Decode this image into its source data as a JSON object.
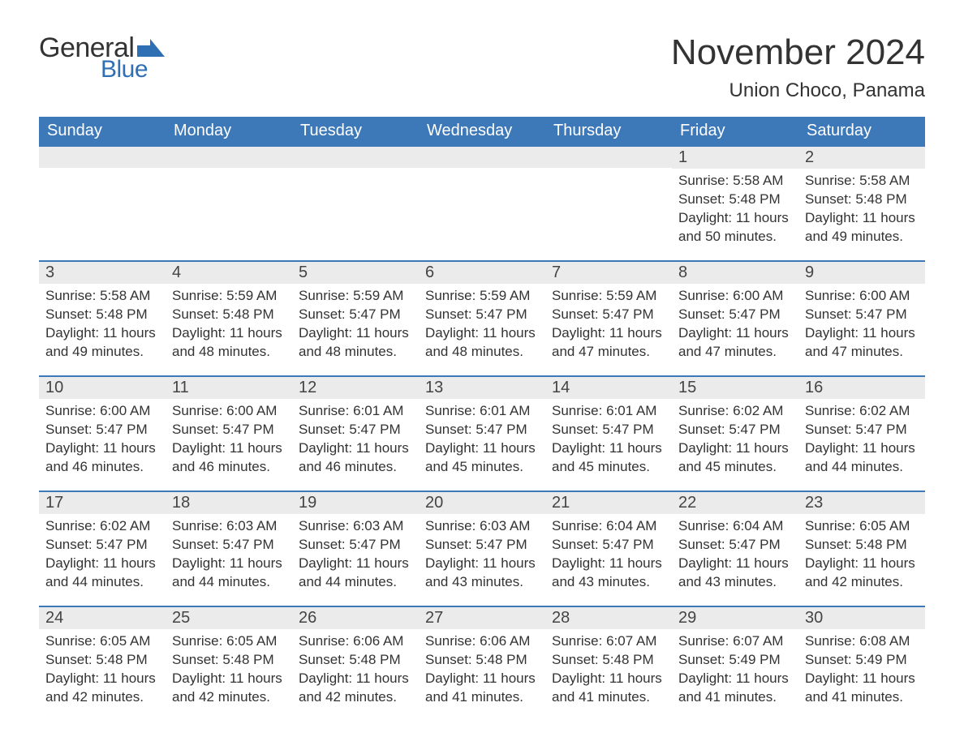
{
  "brand": {
    "part1": "General",
    "part2": "Blue",
    "flag_color": "#2f6fb3"
  },
  "title": "November 2024",
  "location": "Union Choco, Panama",
  "header_bg": "#3d78b8",
  "daynum_bg": "#ebebeb",
  "text_color": "#333333",
  "day_labels": [
    "Sunday",
    "Monday",
    "Tuesday",
    "Wednesday",
    "Thursday",
    "Friday",
    "Saturday"
  ],
  "labels": {
    "sunrise": "Sunrise: ",
    "sunset": "Sunset: ",
    "daylight": "Daylight: "
  },
  "weeks": [
    [
      null,
      null,
      null,
      null,
      null,
      {
        "n": "1",
        "sr": "5:58 AM",
        "ss": "5:48 PM",
        "dl": "11 hours and 50 minutes."
      },
      {
        "n": "2",
        "sr": "5:58 AM",
        "ss": "5:48 PM",
        "dl": "11 hours and 49 minutes."
      }
    ],
    [
      {
        "n": "3",
        "sr": "5:58 AM",
        "ss": "5:48 PM",
        "dl": "11 hours and 49 minutes."
      },
      {
        "n": "4",
        "sr": "5:59 AM",
        "ss": "5:48 PM",
        "dl": "11 hours and 48 minutes."
      },
      {
        "n": "5",
        "sr": "5:59 AM",
        "ss": "5:47 PM",
        "dl": "11 hours and 48 minutes."
      },
      {
        "n": "6",
        "sr": "5:59 AM",
        "ss": "5:47 PM",
        "dl": "11 hours and 48 minutes."
      },
      {
        "n": "7",
        "sr": "5:59 AM",
        "ss": "5:47 PM",
        "dl": "11 hours and 47 minutes."
      },
      {
        "n": "8",
        "sr": "6:00 AM",
        "ss": "5:47 PM",
        "dl": "11 hours and 47 minutes."
      },
      {
        "n": "9",
        "sr": "6:00 AM",
        "ss": "5:47 PM",
        "dl": "11 hours and 47 minutes."
      }
    ],
    [
      {
        "n": "10",
        "sr": "6:00 AM",
        "ss": "5:47 PM",
        "dl": "11 hours and 46 minutes."
      },
      {
        "n": "11",
        "sr": "6:00 AM",
        "ss": "5:47 PM",
        "dl": "11 hours and 46 minutes."
      },
      {
        "n": "12",
        "sr": "6:01 AM",
        "ss": "5:47 PM",
        "dl": "11 hours and 46 minutes."
      },
      {
        "n": "13",
        "sr": "6:01 AM",
        "ss": "5:47 PM",
        "dl": "11 hours and 45 minutes."
      },
      {
        "n": "14",
        "sr": "6:01 AM",
        "ss": "5:47 PM",
        "dl": "11 hours and 45 minutes."
      },
      {
        "n": "15",
        "sr": "6:02 AM",
        "ss": "5:47 PM",
        "dl": "11 hours and 45 minutes."
      },
      {
        "n": "16",
        "sr": "6:02 AM",
        "ss": "5:47 PM",
        "dl": "11 hours and 44 minutes."
      }
    ],
    [
      {
        "n": "17",
        "sr": "6:02 AM",
        "ss": "5:47 PM",
        "dl": "11 hours and 44 minutes."
      },
      {
        "n": "18",
        "sr": "6:03 AM",
        "ss": "5:47 PM",
        "dl": "11 hours and 44 minutes."
      },
      {
        "n": "19",
        "sr": "6:03 AM",
        "ss": "5:47 PM",
        "dl": "11 hours and 44 minutes."
      },
      {
        "n": "20",
        "sr": "6:03 AM",
        "ss": "5:47 PM",
        "dl": "11 hours and 43 minutes."
      },
      {
        "n": "21",
        "sr": "6:04 AM",
        "ss": "5:47 PM",
        "dl": "11 hours and 43 minutes."
      },
      {
        "n": "22",
        "sr": "6:04 AM",
        "ss": "5:47 PM",
        "dl": "11 hours and 43 minutes."
      },
      {
        "n": "23",
        "sr": "6:05 AM",
        "ss": "5:48 PM",
        "dl": "11 hours and 42 minutes."
      }
    ],
    [
      {
        "n": "24",
        "sr": "6:05 AM",
        "ss": "5:48 PM",
        "dl": "11 hours and 42 minutes."
      },
      {
        "n": "25",
        "sr": "6:05 AM",
        "ss": "5:48 PM",
        "dl": "11 hours and 42 minutes."
      },
      {
        "n": "26",
        "sr": "6:06 AM",
        "ss": "5:48 PM",
        "dl": "11 hours and 42 minutes."
      },
      {
        "n": "27",
        "sr": "6:06 AM",
        "ss": "5:48 PM",
        "dl": "11 hours and 41 minutes."
      },
      {
        "n": "28",
        "sr": "6:07 AM",
        "ss": "5:48 PM",
        "dl": "11 hours and 41 minutes."
      },
      {
        "n": "29",
        "sr": "6:07 AM",
        "ss": "5:49 PM",
        "dl": "11 hours and 41 minutes."
      },
      {
        "n": "30",
        "sr": "6:08 AM",
        "ss": "5:49 PM",
        "dl": "11 hours and 41 minutes."
      }
    ]
  ]
}
